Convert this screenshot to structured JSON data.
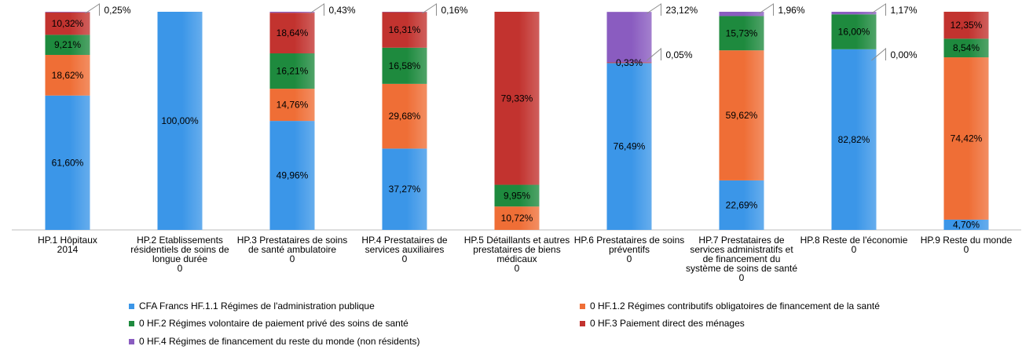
{
  "chart_data": {
    "type": "bar",
    "stacked": true,
    "categories": [
      [
        "HP.1 Hôpitaux",
        "2014"
      ],
      [
        "HP.2 Etablissements",
        "résidentiels de soins de",
        "longue durée",
        "0"
      ],
      [
        "HP.3 Prestataires de soins",
        "de santé ambulatoire",
        "0"
      ],
      [
        "HP.4 Prestataires de",
        "services auxiliaires",
        "0"
      ],
      [
        "HP.5 Détaillants et autres",
        "prestataires de biens",
        "médicaux",
        "0"
      ],
      [
        "HP.6 Prestataires de soins",
        "préventifs",
        "0"
      ],
      [
        "HP.7 Prestataires de",
        "services administratifs et",
        "de financement du",
        "système de soins de santé",
        "0"
      ],
      [
        "HP.8 Reste de l'économie",
        "0"
      ],
      [
        "HP.9 Reste du monde",
        "0"
      ]
    ],
    "series": [
      {
        "name": "CFA Francs HF.1.1 Régimes de l'administration publique",
        "color": "#3b96e8",
        "values": [
          61.6,
          100.0,
          49.96,
          37.27,
          0,
          76.49,
          22.69,
          82.82,
          4.7
        ],
        "labels": [
          "61,60%",
          "100,00%",
          "49,96%",
          "37,27%",
          "",
          "76,49%",
          "22,69%",
          "82,82%",
          "4,70%"
        ]
      },
      {
        "name": "0 HF.1.2 Régimes contributifs obligatoires de financement de la santé",
        "color": "#ef6e36",
        "values": [
          18.62,
          0,
          14.76,
          29.68,
          10.72,
          0,
          59.62,
          0,
          74.42
        ],
        "labels": [
          "18,62%",
          "",
          "14,76%",
          "29,68%",
          "10,72%",
          "",
          "59,62%",
          "",
          "74,42%"
        ]
      },
      {
        "name": "0 HF.2 Régimes volontaire de paiement privé des soins de santé",
        "color": "#1e8a3e",
        "values": [
          9.21,
          0,
          16.21,
          16.58,
          9.95,
          0,
          15.73,
          16.0,
          8.54
        ],
        "labels": [
          "9,21%",
          "",
          "16,21%",
          "16,58%",
          "9,95%",
          "",
          "15,73%",
          "16,00%",
          "8,54%"
        ]
      },
      {
        "name": "0 HF.3 Paiement direct des ménages",
        "color": "#c2332f",
        "values": [
          10.32,
          0,
          18.64,
          16.31,
          79.33,
          0.33,
          0,
          0,
          12.35
        ],
        "labels": [
          "10,32%",
          "",
          "18,64%",
          "16,31%",
          "79,33%",
          "0,33%",
          "",
          "",
          "12,35%"
        ]
      },
      {
        "name": "0 HF.4 Régimes de financement du reste du monde (non résidents)",
        "color": "#8a5cc0",
        "values": [
          0.25,
          0,
          0.43,
          0.16,
          0,
          23.12,
          1.96,
          1.17,
          0
        ],
        "labels": [
          "",
          "",
          "",
          "",
          "",
          "",
          "",
          "",
          ""
        ]
      }
    ],
    "callouts": [
      {
        "category": 0,
        "text": "0,25%"
      },
      {
        "category": 2,
        "text": "0,43%"
      },
      {
        "category": 3,
        "text": "0,16%"
      },
      {
        "category": 5,
        "text": "23,12%"
      },
      {
        "category": 5,
        "text": "0,05%"
      },
      {
        "category": 6,
        "text": "1,96%"
      },
      {
        "category": 7,
        "text": "1,17%"
      },
      {
        "category": 7,
        "text": "0,00%"
      }
    ],
    "ylim": [
      0,
      100
    ],
    "grid": false,
    "legend_position": "bottom"
  }
}
